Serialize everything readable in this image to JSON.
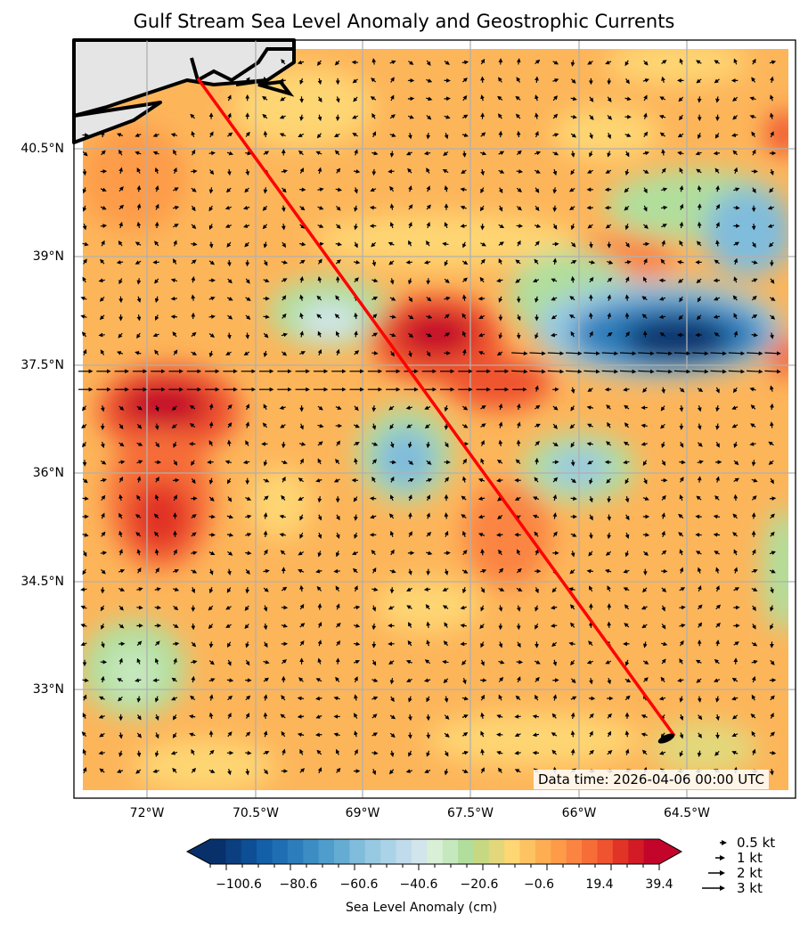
{
  "title": "Gulf Stream Sea Level Anomaly and Geostrophic Currents",
  "x_ticks": [
    "72°W",
    "70.5°W",
    "69°W",
    "67.5°W",
    "66°W",
    "64.5°W"
  ],
  "y_ticks": [
    "40.5°N",
    "39°N",
    "37.5°N",
    "36°N",
    "34.5°N",
    "33°N"
  ],
  "data_time": "Data time: 2026-04-06 00:00 UTC",
  "colorbar": {
    "label": "Sea Level Anomaly (cm)",
    "ticks": [
      "−100.6",
      "−80.6",
      "−60.6",
      "−40.6",
      "−20.6",
      "−0.6",
      "19.4",
      "39.4"
    ],
    "colors": [
      "#08306b",
      "#0b3f80",
      "#0d4e94",
      "#1460a8",
      "#1f6eb3",
      "#2c7dbb",
      "#3b8dc4",
      "#4f9dcc",
      "#65acd3",
      "#80bcdb",
      "#98c9e2",
      "#abd3e8",
      "#bfdbec",
      "#d2e5ec",
      "#d9efd6",
      "#c6e8be",
      "#b1de9c",
      "#c6d982",
      "#e2d87b",
      "#fed673",
      "#fdc262",
      "#fdae53",
      "#fd9b49",
      "#fb8442",
      "#f66d37",
      "#ef532f",
      "#e23327",
      "#d21b25",
      "#c4052b"
    ],
    "under_color": "#08306b",
    "over_color": "#c4052b"
  },
  "quiver_legend": [
    "0.5 kt",
    "1 kt",
    "2 kt",
    "3 kt"
  ],
  "transect_color": "#ff0000"
}
